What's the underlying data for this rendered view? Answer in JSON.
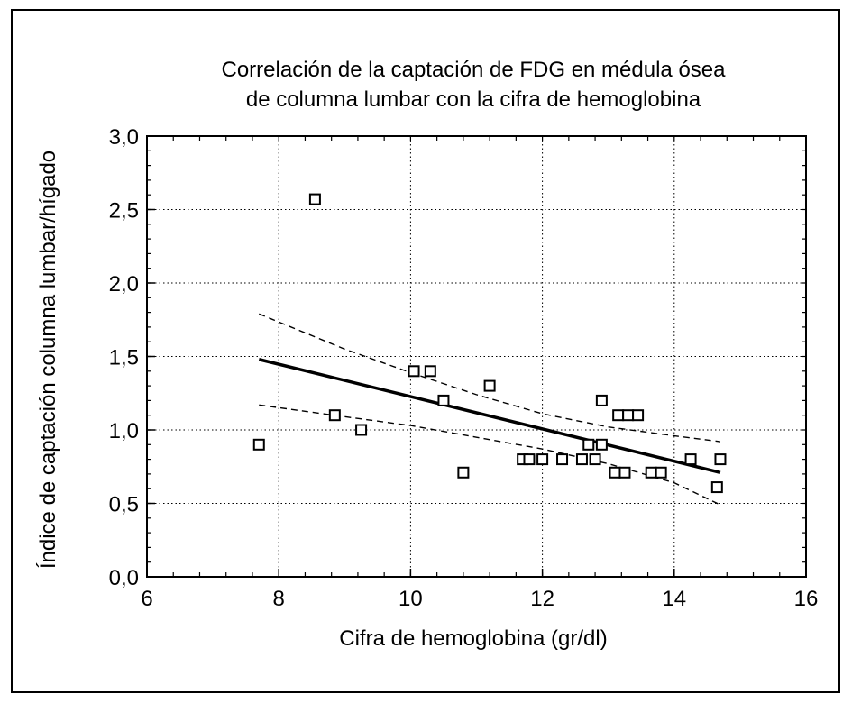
{
  "chart_data": {
    "type": "scatter",
    "title_lines": [
      "Correlación de la captación de FDG en médula ósea",
      "de columna lumbar con la cifra de hemoglobina"
    ],
    "xlabel": "Cifra de hemoglobina (gr/dl)",
    "ylabel": "Índice de captación columna lumbar/hígado",
    "xlim": [
      6,
      16
    ],
    "ylim": [
      0,
      3
    ],
    "xticks": [
      6,
      8,
      10,
      12,
      14,
      16
    ],
    "xtick_labels": [
      "6",
      "8",
      "10",
      "12",
      "14",
      "16"
    ],
    "yticks": [
      0,
      0.5,
      1,
      1.5,
      2,
      2.5,
      3
    ],
    "ytick_labels": [
      "0,0",
      "0,5",
      "1,0",
      "1,5",
      "2,0",
      "2,5",
      "3,0"
    ],
    "grid": true,
    "marker": "open-square",
    "points": [
      [
        7.7,
        0.9
      ],
      [
        8.55,
        2.57
      ],
      [
        8.85,
        1.1
      ],
      [
        9.25,
        1.0
      ],
      [
        10.05,
        1.4
      ],
      [
        10.3,
        1.4
      ],
      [
        10.5,
        1.2
      ],
      [
        10.8,
        0.71
      ],
      [
        11.2,
        1.3
      ],
      [
        11.7,
        0.8
      ],
      [
        11.8,
        0.8
      ],
      [
        12.0,
        0.8
      ],
      [
        12.3,
        0.8
      ],
      [
        12.6,
        0.8
      ],
      [
        12.7,
        0.9
      ],
      [
        12.8,
        0.8
      ],
      [
        12.9,
        1.2
      ],
      [
        12.9,
        0.9
      ],
      [
        13.1,
        0.71
      ],
      [
        13.15,
        1.1
      ],
      [
        13.25,
        0.71
      ],
      [
        13.3,
        1.1
      ],
      [
        13.45,
        1.1
      ],
      [
        13.65,
        0.71
      ],
      [
        13.8,
        0.71
      ],
      [
        14.25,
        0.8
      ],
      [
        14.65,
        0.61
      ],
      [
        14.7,
        0.8
      ]
    ],
    "regression": {
      "x": [
        7.7,
        14.7
      ],
      "y": [
        1.48,
        0.71
      ]
    },
    "confidence_upper": {
      "x": [
        7.7,
        9,
        10,
        11,
        12,
        13,
        14,
        14.7
      ],
      "y": [
        1.79,
        1.55,
        1.39,
        1.24,
        1.11,
        1.02,
        0.96,
        0.92
      ]
    },
    "confidence_lower": {
      "x": [
        7.7,
        9,
        10,
        11,
        12,
        13,
        14,
        14.7
      ],
      "y": [
        1.17,
        1.09,
        1.03,
        0.95,
        0.87,
        0.77,
        0.64,
        0.49
      ]
    }
  }
}
